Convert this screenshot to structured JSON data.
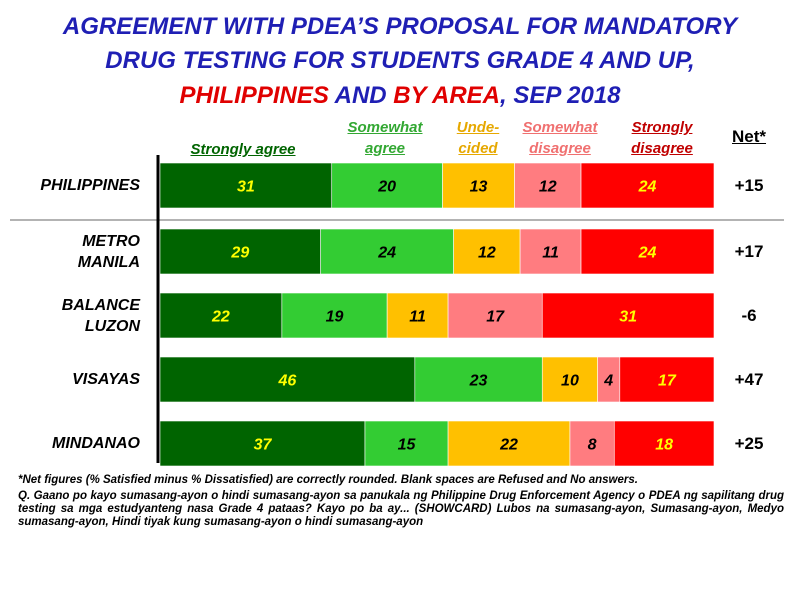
{
  "title": {
    "line1": "AGREEMENT WITH PDEA’S PROPOSAL FOR MANDATORY",
    "line2": "DRUG TESTING FOR STUDENTS GRADE 4 AND UP,",
    "line3_part1": "PHILIPPINES",
    "line3_part2": " AND ",
    "line3_part3": "BY AREA",
    "line3_part4": ", SEP 2018"
  },
  "legend": {
    "strongly_agree": "Strongly agree",
    "somewhat_agree_1": "Somewhat",
    "somewhat_agree_2": "agree",
    "undecided_1": "Unde-",
    "undecided_2": "cided",
    "somewhat_disagree_1": "Somewhat",
    "somewhat_disagree_2": "disagree",
    "strongly_disagree_1": "Strongly",
    "strongly_disagree_2": "disagree",
    "net": "Net*"
  },
  "colors": {
    "strongly_agree": "#006400",
    "somewhat_agree": "#33cc33",
    "undecided": "#ffc000",
    "somewhat_disagree": "#ff7c80",
    "strongly_disagree": "#ff0000",
    "label_yellow": "#ffff00",
    "label_black": "#000000",
    "title_blue": "#1f1fb4",
    "title_red": "#e00000"
  },
  "chart_data": {
    "type": "bar",
    "orientation": "horizontal",
    "stacked": true,
    "categories": [
      "PHILIPPINES",
      "METRO MANILA",
      "BALANCE LUZON",
      "VISAYAS",
      "MINDANAO"
    ],
    "category_lines": [
      [
        "PHILIPPINES"
      ],
      [
        "METRO",
        "MANILA"
      ],
      [
        "BALANCE",
        "LUZON"
      ],
      [
        "VISAYAS"
      ],
      [
        "MINDANAO"
      ]
    ],
    "series": [
      {
        "name": "Strongly agree",
        "values": [
          31,
          29,
          22,
          46,
          37
        ]
      },
      {
        "name": "Somewhat agree",
        "values": [
          20,
          24,
          19,
          23,
          15
        ]
      },
      {
        "name": "Undecided",
        "values": [
          13,
          12,
          11,
          10,
          22
        ]
      },
      {
        "name": "Somewhat disagree",
        "values": [
          12,
          11,
          17,
          4,
          8
        ]
      },
      {
        "name": "Strongly disagree",
        "values": [
          24,
          24,
          31,
          17,
          18
        ]
      }
    ],
    "net": [
      "+15",
      "+17",
      "-6",
      "+47",
      "+25"
    ],
    "xlim": [
      0,
      100
    ],
    "legend_position": "top"
  },
  "footnote": "*Net figures (% Satisfied minus % Dissatisfied) are correctly rounded. Blank spaces are Refused and No answers.",
  "question": "Q. Gaano po kayo sumasang-ayon o hindi sumasang-ayon sa panukala ng Philippine Drug Enforcement Agency o PDEA ng sapilitang drug testing sa mga estudyanteng nasa Grade 4 pataas? Kayo po ba ay... (SHOWCARD) Lubos na sumasang-ayon, Sumasang-ayon, Medyo sumasang-ayon, Hindi tiyak kung sumasang-ayon o hindi sumasang-ayon"
}
